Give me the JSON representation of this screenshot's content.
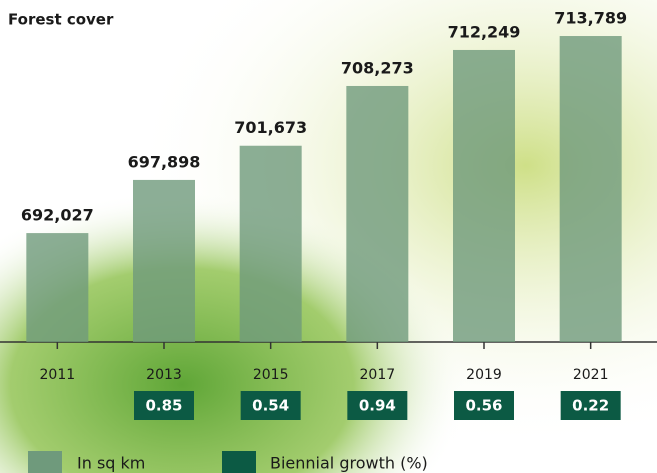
{
  "chart_data": {
    "type": "bar",
    "title": "Forest cover",
    "categories": [
      "2011",
      "2013",
      "2015",
      "2017",
      "2019",
      "2021"
    ],
    "series": [
      {
        "name": "In sq km",
        "color": "#6f9a7c",
        "values": [
          692027,
          697898,
          701673,
          708273,
          712249,
          713789
        ],
        "value_labels": [
          "692,027",
          "697,898",
          "701,673",
          "708,273",
          "712,249",
          "713,789"
        ]
      },
      {
        "name": "Biennial growth (%)",
        "color": "#0c5a44",
        "values": [
          null,
          0.85,
          0.54,
          0.94,
          0.56,
          0.22
        ]
      }
    ],
    "ylim": [
      680000,
      716000
    ]
  }
}
